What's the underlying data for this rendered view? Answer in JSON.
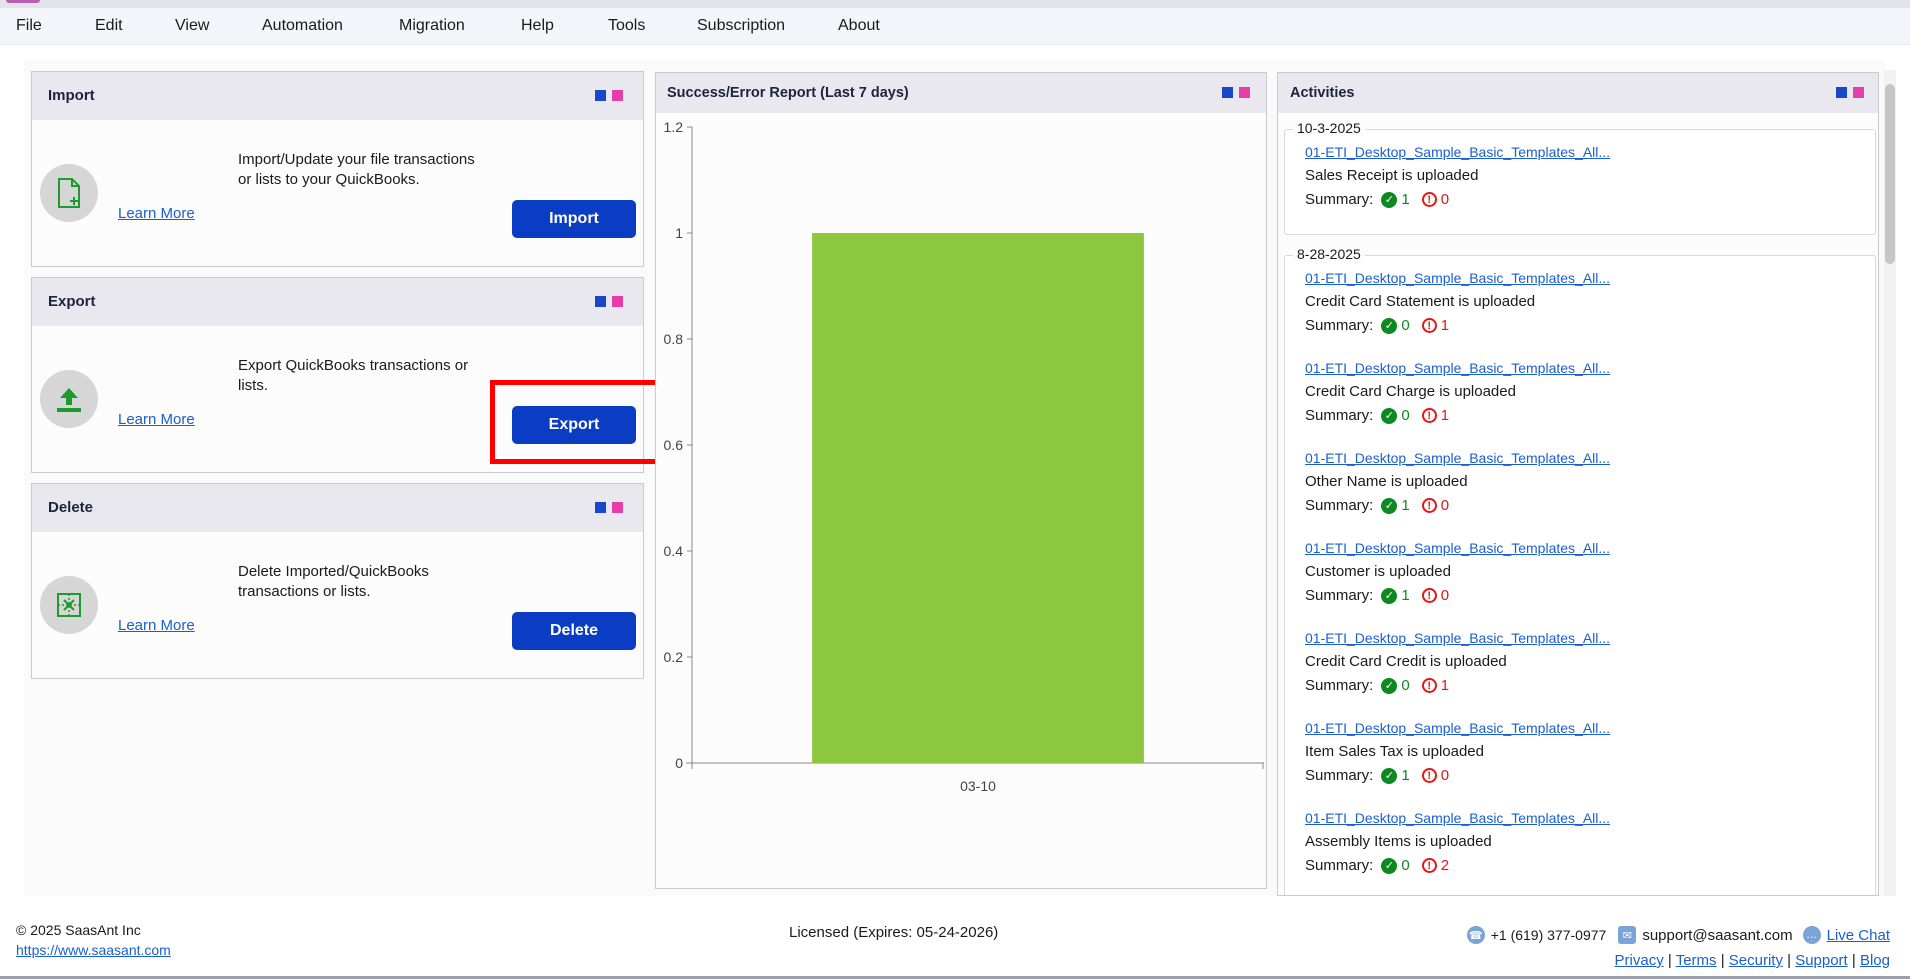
{
  "menubar": {
    "items": [
      "File",
      "Edit",
      "View",
      "Automation",
      "Migration",
      "Help",
      "Tools",
      "Subscription",
      "About"
    ]
  },
  "cards": {
    "import": {
      "title": "Import",
      "description": "Import/Update your file transactions or lists to your QuickBooks.",
      "learn_more": "Learn More",
      "button": "Import",
      "icon": "file-add-icon"
    },
    "export": {
      "title": "Export",
      "description": "Export QuickBooks transactions or lists.",
      "learn_more": "Learn More",
      "button": "Export",
      "icon": "upload-icon"
    },
    "delete": {
      "title": "Delete",
      "description": "Delete Imported/QuickBooks transactions or lists.",
      "learn_more": "Learn More",
      "button": "Delete",
      "icon": "delete-grid-icon"
    }
  },
  "report": {
    "title": "Success/Error Report (Last 7 days)"
  },
  "chart_data": {
    "type": "bar",
    "categories": [
      "03-10"
    ],
    "values": [
      1
    ],
    "title": "Success/Error Report (Last 7 days)",
    "ylim": [
      0,
      1.2
    ],
    "yticks": [
      "0",
      "0.2",
      "0.4",
      "0.6",
      "0.8",
      "1",
      "1.2"
    ],
    "bar_color": "#8dc63f",
    "grid": false
  },
  "activities": {
    "title": "Activities",
    "groups": [
      {
        "date": "10-3-2025",
        "entries": [
          {
            "file": "01-ETI_Desktop_Sample_Basic_Templates_All...",
            "desc": "Sales Receipt is uploaded",
            "summary_label": "Summary:",
            "ok": "1",
            "err": "0"
          }
        ]
      },
      {
        "date": "8-28-2025",
        "entries": [
          {
            "file": "01-ETI_Desktop_Sample_Basic_Templates_All...",
            "desc": "Credit Card Statement is uploaded",
            "summary_label": "Summary:",
            "ok": "0",
            "err": "1"
          },
          {
            "file": "01-ETI_Desktop_Sample_Basic_Templates_All...",
            "desc": "Credit Card Charge is uploaded",
            "summary_label": "Summary:",
            "ok": "0",
            "err": "1"
          },
          {
            "file": "01-ETI_Desktop_Sample_Basic_Templates_All...",
            "desc": "Other Name is uploaded",
            "summary_label": "Summary:",
            "ok": "1",
            "err": "0"
          },
          {
            "file": "01-ETI_Desktop_Sample_Basic_Templates_All...",
            "desc": "Customer is uploaded",
            "summary_label": "Summary:",
            "ok": "1",
            "err": "0"
          },
          {
            "file": "01-ETI_Desktop_Sample_Basic_Templates_All...",
            "desc": "Credit Card Credit is uploaded",
            "summary_label": "Summary:",
            "ok": "0",
            "err": "1"
          },
          {
            "file": "01-ETI_Desktop_Sample_Basic_Templates_All...",
            "desc": "Item Sales Tax is uploaded",
            "summary_label": "Summary:",
            "ok": "1",
            "err": "0"
          },
          {
            "file": "01-ETI_Desktop_Sample_Basic_Templates_All...",
            "desc": "Assembly Items is uploaded",
            "summary_label": "Summary:",
            "ok": "0",
            "err": "2"
          }
        ]
      }
    ]
  },
  "footer": {
    "copyright": "©  2025  SaasAnt Inc",
    "website": "https://www.saasant.com",
    "license": "Licensed  (Expires: 05-24-2026)",
    "phone": "+1 (619) 377-0977",
    "email": "support@saasant.com",
    "live_chat": "Live Chat",
    "links": [
      "Privacy",
      "Terms",
      "Security",
      "Support",
      "Blog"
    ]
  },
  "colors": {
    "accent_button": "#0a3cc4",
    "success": "#0d8a1f",
    "error": "#e01818",
    "highlight": "#ff0000"
  }
}
